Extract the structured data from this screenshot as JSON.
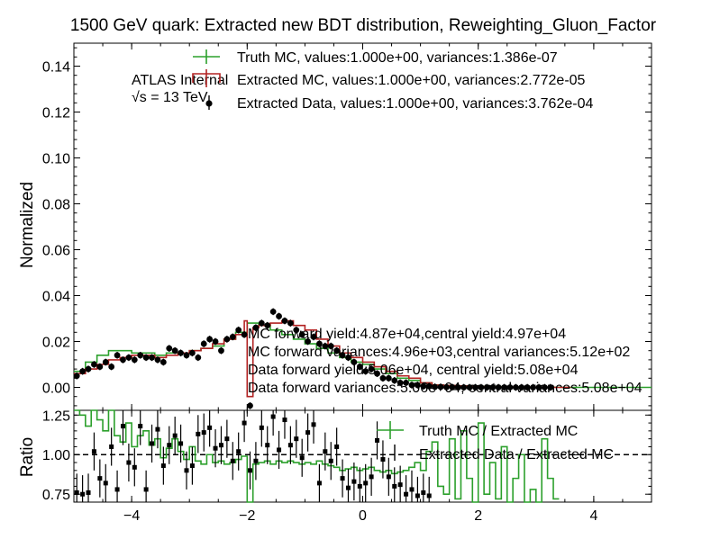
{
  "chart_data": [
    {
      "type": "line",
      "panel": "main",
      "title": "1500 GeV quark: Extracted new BDT distribution, Reweighting_Gluon_Factor",
      "xlabel": "",
      "ylabel": "Normalized",
      "xlim": [
        -5,
        5
      ],
      "ylim": [
        -0.01,
        0.15
      ],
      "yticks": [
        "0.00",
        "0.02",
        "0.04",
        "0.06",
        "0.08",
        "0.10",
        "0.12",
        "0.14"
      ],
      "xticks": [
        "−4",
        "−2",
        "0",
        "2",
        "4"
      ],
      "experiment_label": "ATLAS Internal",
      "energy_label": "√s = 13 TeV",
      "legend_position": "top-center",
      "series": [
        {
          "name": "Truth MC, values:1.000e+00, variances:1.386e-07",
          "style": "step",
          "color": "#2ca02c",
          "x": [
            -5.0,
            -4.8,
            -4.6,
            -4.4,
            -4.2,
            -4.0,
            -3.8,
            -3.6,
            -3.4,
            -3.2,
            -3.0,
            -2.8,
            -2.6,
            -2.4,
            -2.2,
            -2.0,
            -1.8,
            -1.6,
            -1.4,
            -1.2,
            -1.0,
            -0.8,
            -0.6,
            -0.4,
            -0.2,
            0.0,
            0.2,
            0.4,
            0.6,
            0.8,
            1.0,
            1.2,
            1.4,
            1.6,
            1.8,
            2.0,
            2.2,
            2.4,
            2.6,
            2.8,
            3.0,
            3.2,
            3.4,
            3.6,
            3.8,
            4.0,
            4.2,
            4.4,
            4.6,
            4.8
          ],
          "y": [
            0.007,
            0.011,
            0.014,
            0.016,
            0.016,
            0.015,
            0.015,
            0.014,
            0.015,
            0.015,
            0.016,
            0.017,
            0.018,
            0.021,
            0.024,
            0.028,
            0.027,
            0.025,
            0.023,
            0.021,
            0.019,
            0.017,
            0.015,
            0.013,
            0.011,
            0.01,
            0.008,
            0.006,
            0.004,
            0.003,
            0.002,
            0.001,
            0.0008,
            0.0006,
            0.0005,
            0.0004,
            0.0003,
            0.0002,
            0.0002,
            0.0001,
            0.0001,
            0.0001,
            0.0,
            0.0,
            0.0,
            0.0,
            0.0,
            0.0,
            0.0,
            0.0
          ]
        },
        {
          "name": "Extracted MC, values:1.000e+00, variances:2.772e-05",
          "style": "step",
          "color": "#b22222",
          "x": [
            -5.0,
            -4.8,
            -4.6,
            -4.4,
            -4.2,
            -4.0,
            -3.8,
            -3.6,
            -3.4,
            -3.2,
            -3.0,
            -2.8,
            -2.6,
            -2.4,
            -2.2,
            -2.05,
            -2.0,
            -1.9,
            -1.8,
            -1.6,
            -1.4,
            -1.2,
            -1.0,
            -0.8,
            -0.6,
            -0.4,
            -0.2,
            0.0,
            0.2,
            0.4,
            0.6,
            0.8,
            1.0,
            1.2,
            1.4,
            1.6,
            1.8,
            2.0,
            2.2,
            2.4,
            2.6,
            2.8,
            3.0,
            3.2,
            3.4
          ],
          "y": [
            0.006,
            0.008,
            0.01,
            0.012,
            0.013,
            0.014,
            0.014,
            0.013,
            0.014,
            0.015,
            0.016,
            0.017,
            0.019,
            0.021,
            0.023,
            0.029,
            -0.004,
            0.026,
            0.027,
            0.028,
            0.029,
            0.027,
            0.025,
            0.021,
            0.018,
            0.015,
            0.013,
            0.011,
            0.009,
            0.007,
            0.005,
            0.004,
            0.002,
            0.001,
            0.0008,
            0.0006,
            0.0004,
            0.0003,
            0.0002,
            0.0002,
            0.0001,
            0.0001,
            0.0001,
            0.0,
            0.0
          ]
        },
        {
          "name": "Extracted Data, values:1.000e+00, variances:3.762e-04",
          "style": "errorbar",
          "color": "#000000",
          "x": [
            -4.95,
            -4.85,
            -4.75,
            -4.65,
            -4.55,
            -4.45,
            -4.35,
            -4.25,
            -4.15,
            -4.05,
            -3.95,
            -3.85,
            -3.75,
            -3.65,
            -3.55,
            -3.45,
            -3.35,
            -3.25,
            -3.15,
            -3.05,
            -2.95,
            -2.85,
            -2.75,
            -2.65,
            -2.55,
            -2.45,
            -2.35,
            -2.25,
            -2.15,
            -2.05,
            -1.95,
            -1.85,
            -1.75,
            -1.65,
            -1.55,
            -1.45,
            -1.35,
            -1.25,
            -1.15,
            -1.05,
            -0.95,
            -0.85,
            -0.75,
            -0.65,
            -0.55,
            -0.45,
            -0.35,
            -0.25,
            -0.15,
            -0.05,
            0.05,
            0.15,
            0.25,
            0.35,
            0.45,
            0.55,
            0.65,
            0.75,
            0.85,
            0.95,
            1.05,
            1.15,
            1.25,
            1.35,
            1.45,
            1.55,
            1.65,
            1.75,
            1.85,
            1.95,
            2.05,
            2.15,
            2.25,
            2.35,
            2.45,
            2.55,
            2.65,
            2.75,
            2.85,
            2.95,
            3.05,
            3.15,
            3.25
          ],
          "y": [
            0.005,
            0.007,
            0.008,
            0.01,
            0.009,
            0.011,
            0.009,
            0.014,
            0.012,
            0.013,
            0.012,
            0.014,
            0.013,
            0.013,
            0.012,
            0.011,
            0.017,
            0.016,
            0.015,
            0.014,
            0.015,
            0.013,
            0.019,
            0.021,
            0.02,
            0.016,
            0.021,
            0.022,
            0.025,
            0.023,
            -0.008,
            0.026,
            0.028,
            0.027,
            0.033,
            0.031,
            0.029,
            0.028,
            0.025,
            0.023,
            0.02,
            0.022,
            0.019,
            0.018,
            0.018,
            0.016,
            0.014,
            0.013,
            0.011,
            0.009,
            0.007,
            0.008,
            0.006,
            0.004,
            0.004,
            0.003,
            0.002,
            0.002,
            0.001,
            0.001,
            0.0005,
            0.0005,
            0.0002,
            0.0002,
            0.0001,
            0.0001,
            0.0,
            0.0,
            0.0,
            0.0,
            0.0,
            0.0,
            0.0,
            0.0,
            0.0,
            0.0,
            0.0,
            0.0,
            0.0,
            0.0,
            0.0,
            0.0,
            0.0
          ],
          "yerr": 0.0015
        }
      ],
      "annotations": [
        "MC forward yield:4.87e+04,central yield:4.97e+04",
        "MC forward variances:4.96e+03,central variances:5.12e+02",
        "Data forward yield:5.06e+04, central yield:5.08e+04",
        "Data forward variances:5.06e+04, central variances:5.08e+04"
      ]
    },
    {
      "type": "line",
      "panel": "ratio",
      "xlabel": "",
      "ylabel": "Ratio",
      "xlim": [
        -5,
        5
      ],
      "ylim": [
        0.7,
        1.28
      ],
      "yticks": [
        "0.75",
        "1.00",
        "1.25"
      ],
      "xticks": [
        "−4",
        "−2",
        "0",
        "2",
        "4"
      ],
      "reference_line": 1.0,
      "legend_position": "top-right",
      "series": [
        {
          "name": "Truth MC / Extracted MC",
          "style": "step",
          "color": "#2ca02c",
          "x": [
            -5.0,
            -4.9,
            -4.8,
            -4.7,
            -4.6,
            -4.5,
            -4.4,
            -4.3,
            -4.2,
            -4.1,
            -4.0,
            -3.9,
            -3.8,
            -3.7,
            -3.6,
            -3.5,
            -3.4,
            -3.3,
            -3.2,
            -3.1,
            -3.0,
            -2.9,
            -2.8,
            -2.7,
            -2.6,
            -2.5,
            -2.4,
            -2.3,
            -2.2,
            -2.1,
            -2.0,
            -1.9,
            -1.8,
            -1.7,
            -1.6,
            -1.5,
            -1.4,
            -1.3,
            -1.2,
            -1.1,
            -1.0,
            -0.9,
            -0.8,
            -0.7,
            -0.6,
            -0.5,
            -0.4,
            -0.3,
            -0.2,
            -0.1,
            0.0,
            0.1,
            0.2,
            0.3,
            0.4,
            0.5,
            0.6,
            0.7,
            0.8,
            0.9,
            1.0,
            1.1,
            1.2,
            1.3,
            1.4,
            1.5,
            1.6,
            1.7,
            1.8,
            1.9,
            2.0,
            2.1,
            2.2,
            2.3,
            2.4,
            2.5,
            2.6,
            2.7,
            2.8,
            2.9,
            3.0,
            3.1,
            3.2,
            3.3
          ],
          "y": [
            1.28,
            1.25,
            1.18,
            1.28,
            1.22,
            1.15,
            1.28,
            1.12,
            1.08,
            1.2,
            1.05,
            1.12,
            1.15,
            1.06,
            1.1,
            0.98,
            1.04,
            1.1,
            1.02,
            0.97,
            1.05,
            0.96,
            0.94,
            1.0,
            0.95,
            0.96,
            0.94,
            0.95,
            0.97,
            0.99,
            0.7,
            0.94,
            0.95,
            0.96,
            0.94,
            0.96,
            0.95,
            0.96,
            0.95,
            0.94,
            0.95,
            0.94,
            0.96,
            0.94,
            0.93,
            0.92,
            0.9,
            0.91,
            0.92,
            0.9,
            0.91,
            0.92,
            0.9,
            0.89,
            0.9,
            0.88,
            0.89,
            0.9,
            0.92,
            0.95,
            0.9,
            1.02,
            1.08,
            0.8,
            0.75,
            1.1,
            0.72,
            1.15,
            0.85,
            0.7,
            1.2,
            0.75,
            0.95,
            0.72,
            1.05,
            0.7,
            0.85,
            1.0,
            0.7,
            0.78,
            0.7,
            1.1,
            0.85,
            0.72
          ]
        },
        {
          "name": "Extracted Data / Extracted MC",
          "style": "errorbar",
          "color": "#000000",
          "x": [
            -4.95,
            -4.85,
            -4.75,
            -4.65,
            -4.55,
            -4.45,
            -4.35,
            -4.25,
            -4.15,
            -4.05,
            -3.95,
            -3.85,
            -3.75,
            -3.65,
            -3.55,
            -3.45,
            -3.35,
            -3.25,
            -3.15,
            -3.05,
            -2.95,
            -2.85,
            -2.75,
            -2.65,
            -2.55,
            -2.45,
            -2.35,
            -2.25,
            -2.15,
            -2.05,
            -1.95,
            -1.85,
            -1.75,
            -1.65,
            -1.55,
            -1.45,
            -1.35,
            -1.25,
            -1.15,
            -1.05,
            -0.95,
            -0.85,
            -0.75,
            -0.65,
            -0.55,
            -0.45,
            -0.35,
            -0.25,
            -0.15,
            -0.05,
            0.05,
            0.15,
            0.25,
            0.35,
            0.45,
            0.55,
            0.65,
            0.75,
            0.85,
            0.95,
            1.05,
            1.15
          ],
          "y": [
            0.76,
            0.75,
            0.76,
            1.02,
            0.85,
            0.82,
            1.05,
            0.78,
            1.18,
            0.95,
            0.92,
            1.18,
            0.78,
            1.07,
            1.16,
            0.93,
            1.06,
            1.12,
            1.07,
            0.9,
            0.93,
            1.13,
            1.14,
            1.17,
            1.04,
            1.06,
            1.1,
            0.96,
            1.02,
            1.2,
            0.9,
            0.96,
            1.17,
            1.06,
            1.24,
            1.03,
            1.22,
            1.06,
            1.1,
            0.98,
            1.14,
            1.19,
            0.82,
            1.02,
            0.96,
            1.05,
            0.85,
            0.79,
            0.83,
            0.8,
            0.82,
            0.86,
            1.09,
            0.97,
            0.86,
            0.8,
            0.81,
            0.75,
            0.78,
            0.74,
            0.76,
            0.74
          ],
          "yerr": 0.12
        }
      ]
    }
  ]
}
